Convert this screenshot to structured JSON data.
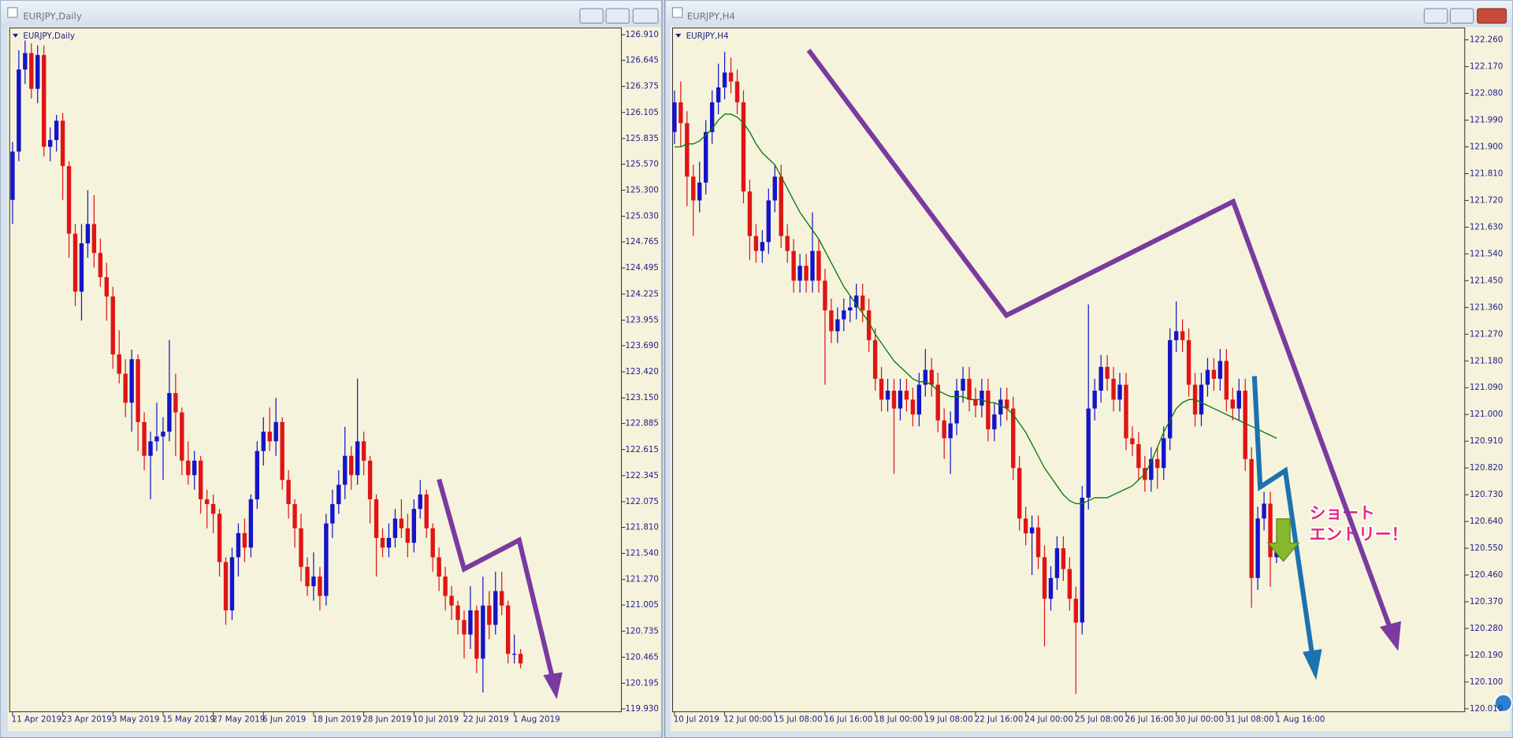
{
  "chart_data": [
    {
      "type": "candlestick",
      "window_title": "EURJPY,Daily",
      "title": "EURJPY,Daily",
      "up_color": "#1414c8",
      "down_color": "#e01414",
      "categories": [
        "11 Apr 2019",
        null,
        null,
        null,
        null,
        null,
        null,
        null,
        "23 Apr 2019",
        null,
        null,
        null,
        null,
        null,
        null,
        null,
        "3 May 2019",
        null,
        null,
        null,
        null,
        null,
        null,
        null,
        "15 May 2019",
        null,
        null,
        null,
        null,
        null,
        null,
        null,
        "27 May 2019",
        null,
        null,
        null,
        null,
        null,
        null,
        null,
        "6 Jun 2019",
        null,
        null,
        null,
        null,
        null,
        null,
        null,
        "18 Jun 2019",
        null,
        null,
        null,
        null,
        null,
        null,
        null,
        "28 Jun 2019",
        null,
        null,
        null,
        null,
        null,
        null,
        null,
        "10 Jul 2019",
        null,
        null,
        null,
        null,
        null,
        null,
        null,
        "22 Jul 2019",
        null,
        null,
        null,
        null,
        null,
        null,
        null,
        "1 Aug 2019",
        null
      ],
      "open": [
        125.2,
        125.7,
        126.55,
        126.72,
        126.35,
        126.7,
        125.75,
        125.82,
        126.02,
        125.55,
        124.85,
        124.25,
        124.75,
        124.95,
        124.65,
        124.4,
        124.2,
        123.6,
        123.4,
        123.1,
        123.55,
        122.9,
        122.55,
        122.7,
        122.75,
        122.8,
        123.2,
        123.0,
        122.5,
        122.35,
        122.5,
        122.1,
        122.05,
        121.95,
        121.45,
        120.95,
        121.5,
        121.75,
        121.6,
        122.1,
        122.6,
        122.8,
        122.7,
        122.9,
        122.3,
        122.05,
        121.8,
        121.4,
        121.2,
        121.3,
        121.1,
        121.85,
        122.05,
        122.25,
        122.55,
        122.35,
        122.7,
        122.5,
        122.1,
        121.7,
        121.6,
        121.7,
        121.9,
        121.8,
        121.65,
        122.0,
        122.15,
        121.8,
        121.5,
        121.3,
        121.1,
        121.0,
        120.85,
        120.7,
        120.95,
        120.45,
        121.0,
        120.8,
        121.15,
        121.0,
        120.5,
        120.5
      ],
      "high": [
        125.8,
        126.75,
        126.85,
        126.82,
        126.8,
        126.8,
        125.95,
        126.08,
        126.1,
        125.6,
        124.95,
        124.95,
        125.3,
        125.25,
        124.8,
        124.55,
        124.3,
        123.85,
        123.55,
        123.65,
        123.6,
        123.0,
        122.8,
        123.1,
        122.95,
        123.75,
        123.4,
        123.05,
        122.7,
        122.6,
        122.55,
        122.2,
        122.15,
        122.0,
        121.5,
        121.6,
        121.85,
        121.9,
        122.15,
        122.7,
        122.95,
        123.05,
        123.15,
        122.95,
        122.4,
        122.1,
        121.95,
        121.5,
        121.55,
        121.4,
        121.95,
        122.2,
        122.4,
        122.85,
        122.65,
        123.35,
        122.8,
        122.55,
        122.15,
        121.8,
        121.85,
        122.0,
        122.1,
        121.95,
        122.1,
        122.3,
        122.2,
        121.85,
        121.6,
        121.4,
        121.2,
        121.05,
        120.95,
        121.2,
        121.0,
        121.3,
        121.15,
        121.35,
        121.35,
        121.05,
        120.7,
        120.55
      ],
      "low": [
        124.95,
        125.6,
        126.4,
        126.25,
        126.2,
        125.65,
        125.6,
        125.7,
        125.2,
        124.6,
        124.1,
        123.95,
        124.6,
        124.5,
        124.3,
        123.95,
        123.45,
        123.3,
        122.95,
        122.8,
        122.6,
        122.4,
        122.1,
        122.6,
        122.3,
        122.7,
        122.55,
        122.35,
        122.25,
        122.2,
        121.95,
        121.8,
        121.75,
        121.3,
        120.8,
        120.85,
        121.3,
        121.45,
        121.5,
        122.0,
        122.45,
        122.6,
        122.55,
        122.2,
        121.9,
        121.6,
        121.25,
        121.1,
        121.05,
        120.95,
        121.0,
        121.7,
        121.95,
        122.1,
        122.2,
        122.25,
        122.35,
        121.85,
        121.3,
        121.5,
        121.5,
        121.6,
        121.7,
        121.5,
        121.55,
        121.9,
        121.7,
        121.35,
        121.15,
        120.95,
        120.85,
        120.7,
        120.45,
        120.55,
        120.3,
        120.1,
        120.65,
        120.7,
        120.9,
        120.4,
        120.4,
        120.35
      ],
      "close": [
        125.7,
        126.55,
        126.72,
        126.35,
        126.7,
        125.75,
        125.82,
        126.02,
        125.55,
        124.85,
        124.25,
        124.75,
        124.95,
        124.65,
        124.4,
        124.2,
        123.6,
        123.4,
        123.1,
        123.55,
        122.9,
        122.55,
        122.7,
        122.75,
        122.8,
        123.2,
        123.0,
        122.5,
        122.35,
        122.5,
        122.1,
        122.05,
        121.95,
        121.45,
        120.95,
        121.5,
        121.75,
        121.6,
        122.1,
        122.6,
        122.8,
        122.7,
        122.9,
        122.3,
        122.05,
        121.8,
        121.4,
        121.2,
        121.3,
        121.1,
        121.85,
        122.05,
        122.25,
        122.55,
        122.35,
        122.7,
        122.5,
        122.1,
        121.7,
        121.6,
        121.7,
        121.9,
        121.8,
        121.65,
        122.0,
        122.15,
        121.8,
        121.5,
        121.3,
        121.1,
        121.0,
        120.85,
        120.7,
        120.95,
        120.45,
        121.0,
        120.8,
        121.15,
        121.0,
        120.5,
        120.5,
        120.4
      ],
      "ylim": [
        119.9,
        126.98
      ],
      "yticks": [
        {
          "value": 126.91,
          "label": "126.910"
        },
        126.645,
        126.375,
        126.105,
        125.835,
        {
          "value": 125.57,
          "label": "125.570"
        },
        {
          "value": 125.3,
          "label": "125.300"
        },
        {
          "value": 125.03,
          "label": "125.030"
        },
        124.765,
        124.495,
        124.225,
        123.955,
        {
          "value": 123.69,
          "label": "123.690"
        },
        {
          "value": 123.42,
          "label": "123.420"
        },
        {
          "value": 123.15,
          "label": "123.150"
        },
        122.885,
        122.615,
        122.345,
        122.075,
        {
          "value": 121.81,
          "label": "121.810"
        },
        {
          "value": 121.54,
          "label": "121.540"
        },
        {
          "value": 121.27,
          "label": "121.270"
        },
        121.005,
        120.735,
        120.465,
        120.195,
        {
          "value": 119.93,
          "label": "119.930"
        }
      ]
    },
    {
      "type": "candlestick",
      "window_title": "EURJPY,H4",
      "title": "EURJPY,H4",
      "up_color": "#1414c8",
      "down_color": "#e01414",
      "categories": [
        "10 Jul 2019",
        null,
        null,
        null,
        null,
        null,
        null,
        null,
        "12 Jul 00:00",
        null,
        null,
        null,
        null,
        null,
        null,
        null,
        "15 Jul 08:00",
        null,
        null,
        null,
        null,
        null,
        null,
        null,
        "16 Jul 16:00",
        null,
        null,
        null,
        null,
        null,
        null,
        null,
        "18 Jul 00:00",
        null,
        null,
        null,
        null,
        null,
        null,
        null,
        "19 Jul 08:00",
        null,
        null,
        null,
        null,
        null,
        null,
        null,
        "22 Jul 16:00",
        null,
        null,
        null,
        null,
        null,
        null,
        null,
        "24 Jul 00:00",
        null,
        null,
        null,
        null,
        null,
        null,
        null,
        "25 Jul 08:00",
        null,
        null,
        null,
        null,
        null,
        null,
        null,
        "26 Jul 16:00",
        null,
        null,
        null,
        null,
        null,
        null,
        null,
        "30 Jul 00:00",
        null,
        null,
        null,
        null,
        null,
        null,
        null,
        "31 Jul 08:00",
        null,
        null,
        null,
        null,
        null,
        null,
        null,
        "1 Aug 16:00"
      ],
      "open": [
        121.95,
        122.05,
        121.98,
        121.8,
        121.72,
        121.78,
        121.95,
        122.05,
        122.1,
        122.15,
        122.12,
        122.05,
        121.75,
        121.6,
        121.55,
        121.58,
        121.72,
        121.8,
        121.6,
        121.55,
        121.45,
        121.5,
        121.45,
        121.55,
        121.45,
        121.35,
        121.28,
        121.32,
        121.35,
        121.36,
        121.4,
        121.35,
        121.25,
        121.12,
        121.05,
        121.08,
        121.02,
        121.08,
        121.05,
        121.0,
        121.1,
        121.15,
        121.1,
        120.98,
        120.92,
        120.97,
        121.08,
        121.12,
        121.05,
        121.03,
        121.08,
        120.95,
        121.0,
        121.05,
        121.02,
        120.82,
        120.65,
        120.6,
        120.62,
        120.52,
        120.38,
        120.45,
        120.55,
        120.48,
        120.38,
        120.3,
        120.72,
        121.02,
        121.08,
        121.16,
        121.12,
        121.05,
        121.1,
        120.92,
        120.9,
        120.82,
        120.78,
        120.85,
        120.82,
        120.92,
        121.25,
        121.28,
        121.25,
        121.1,
        121.0,
        121.1,
        121.15,
        121.12,
        121.18,
        121.05,
        121.02,
        121.08,
        120.85,
        120.45,
        120.65,
        120.7,
        120.52
      ],
      "high": [
        122.09,
        122.12,
        122.02,
        121.84,
        121.85,
        121.99,
        122.09,
        122.18,
        122.22,
        122.2,
        122.16,
        122.09,
        121.79,
        121.64,
        121.62,
        121.76,
        121.84,
        121.84,
        121.64,
        121.59,
        121.54,
        121.54,
        121.68,
        121.59,
        121.49,
        121.39,
        121.36,
        121.39,
        121.4,
        121.44,
        121.44,
        121.39,
        121.29,
        121.16,
        121.12,
        121.12,
        121.12,
        121.12,
        121.09,
        121.14,
        121.22,
        121.19,
        121.14,
        121.02,
        121.01,
        121.12,
        121.16,
        121.16,
        121.09,
        121.12,
        121.12,
        121.04,
        121.09,
        121.09,
        121.06,
        120.86,
        120.69,
        120.66,
        120.66,
        120.56,
        120.49,
        120.59,
        120.59,
        120.52,
        120.42,
        120.76,
        121.37,
        121.12,
        121.2,
        121.2,
        121.16,
        121.14,
        121.14,
        120.96,
        120.94,
        120.86,
        120.89,
        120.89,
        120.96,
        121.29,
        121.38,
        121.32,
        121.29,
        121.14,
        121.14,
        121.19,
        121.19,
        121.22,
        121.22,
        121.09,
        121.12,
        121.12,
        120.89,
        120.69,
        120.74,
        120.74,
        120.59
      ],
      "low": [
        121.91,
        121.9,
        121.7,
        121.6,
        121.68,
        121.74,
        121.91,
        122.01,
        122.06,
        122.08,
        122.01,
        121.71,
        121.52,
        121.51,
        121.51,
        121.54,
        121.68,
        121.56,
        121.51,
        121.41,
        121.41,
        121.41,
        121.41,
        121.41,
        121.1,
        121.24,
        121.24,
        121.28,
        121.31,
        121.32,
        121.31,
        121.21,
        121.08,
        121.01,
        121.01,
        120.8,
        120.98,
        121.01,
        120.96,
        120.96,
        121.06,
        121.06,
        120.94,
        120.85,
        120.8,
        120.93,
        121.04,
        121.01,
        120.99,
        120.99,
        120.91,
        120.91,
        120.96,
        120.98,
        120.78,
        120.61,
        120.56,
        120.46,
        120.48,
        120.22,
        120.34,
        120.41,
        120.44,
        120.34,
        120.06,
        120.26,
        120.68,
        120.98,
        121.04,
        121.08,
        121.01,
        121.01,
        120.88,
        120.86,
        120.78,
        120.74,
        120.74,
        120.75,
        120.78,
        120.88,
        121.21,
        121.21,
        121.06,
        120.96,
        120.96,
        121.06,
        121.08,
        121.08,
        121.01,
        120.98,
        120.98,
        120.81,
        120.35,
        120.41,
        120.61,
        120.42,
        120.5
      ],
      "close": [
        122.05,
        121.98,
        121.8,
        121.72,
        121.78,
        121.95,
        122.05,
        122.1,
        122.15,
        122.12,
        122.05,
        121.75,
        121.6,
        121.55,
        121.58,
        121.72,
        121.8,
        121.6,
        121.55,
        121.45,
        121.5,
        121.45,
        121.55,
        121.45,
        121.35,
        121.28,
        121.32,
        121.35,
        121.36,
        121.4,
        121.35,
        121.25,
        121.12,
        121.05,
        121.08,
        121.02,
        121.08,
        121.05,
        121.0,
        121.1,
        121.15,
        121.1,
        120.98,
        120.92,
        120.97,
        121.08,
        121.12,
        121.05,
        121.03,
        121.08,
        120.95,
        121.0,
        121.05,
        121.02,
        120.82,
        120.65,
        120.6,
        120.62,
        120.52,
        120.38,
        120.45,
        120.55,
        120.48,
        120.38,
        120.3,
        120.72,
        121.02,
        121.08,
        121.16,
        121.12,
        121.05,
        121.1,
        120.92,
        120.9,
        120.82,
        120.78,
        120.85,
        120.82,
        120.92,
        121.25,
        121.28,
        121.25,
        121.1,
        121.0,
        121.1,
        121.15,
        121.12,
        121.18,
        121.05,
        121.02,
        121.08,
        120.85,
        120.45,
        120.65,
        120.7,
        120.52,
        120.55
      ],
      "moving_average": {
        "color": "#0a7a0a",
        "values": [
          121.9,
          121.9,
          121.91,
          121.91,
          121.92,
          121.94,
          121.96,
          121.99,
          122.01,
          122.01,
          122.0,
          121.98,
          121.95,
          121.91,
          121.88,
          121.86,
          121.84,
          121.8,
          121.76,
          121.72,
          121.68,
          121.65,
          121.62,
          121.59,
          121.55,
          121.51,
          121.47,
          121.43,
          121.4,
          121.37,
          121.34,
          121.31,
          121.27,
          121.24,
          121.21,
          121.18,
          121.16,
          121.14,
          121.12,
          121.11,
          121.11,
          121.1,
          121.08,
          121.07,
          121.06,
          121.06,
          121.06,
          121.05,
          121.05,
          121.05,
          121.04,
          121.04,
          121.03,
          121.02,
          121.0,
          120.97,
          120.94,
          120.9,
          120.86,
          120.82,
          120.79,
          120.76,
          120.73,
          120.71,
          120.7,
          120.7,
          120.71,
          120.72,
          120.72,
          120.72,
          120.73,
          120.74,
          120.75,
          120.76,
          120.78,
          120.8,
          120.84,
          120.89,
          120.94,
          120.98,
          121.02,
          121.04,
          121.05,
          121.05,
          121.04,
          121.03,
          121.02,
          121.01,
          121.0,
          120.99,
          120.98,
          120.97,
          120.96,
          120.95,
          120.94,
          120.93,
          120.92
        ]
      },
      "annotations": [
        "ショート",
        "エントリー！"
      ],
      "ylim": [
        120.0,
        122.3
      ],
      "yticks": [
        {
          "value": 122.26,
          "label": "122.260"
        },
        {
          "value": 122.17,
          "label": "122.170"
        },
        {
          "value": 122.08,
          "label": "122.080"
        },
        {
          "value": 121.99,
          "label": "121.990"
        },
        {
          "value": 121.9,
          "label": "121.900"
        },
        {
          "value": 121.81,
          "label": "121.810"
        },
        {
          "value": 121.72,
          "label": "121.720"
        },
        {
          "value": 121.63,
          "label": "121.630"
        },
        {
          "value": 121.54,
          "label": "121.540"
        },
        {
          "value": 121.45,
          "label": "121.450"
        },
        {
          "value": 121.36,
          "label": "121.360"
        },
        {
          "value": 121.27,
          "label": "121.270"
        },
        {
          "value": 121.18,
          "label": "121.180"
        },
        {
          "value": 121.09,
          "label": "121.090"
        },
        {
          "value": 121.0,
          "label": "121.000"
        },
        {
          "value": 120.91,
          "label": "120.910"
        },
        {
          "value": 120.82,
          "label": "120.820"
        },
        {
          "value": 120.73,
          "label": "120.730"
        },
        {
          "value": 120.64,
          "label": "120.640"
        },
        {
          "value": 120.55,
          "label": "120.550"
        },
        {
          "value": 120.46,
          "label": "120.460"
        },
        {
          "value": 120.37,
          "label": "120.370"
        },
        {
          "value": 120.28,
          "label": "120.280"
        },
        {
          "value": 120.19,
          "label": "120.190"
        },
        {
          "value": 120.1,
          "label": "120.100"
        },
        {
          "value": 120.01,
          "label": "120.010"
        }
      ]
    }
  ]
}
